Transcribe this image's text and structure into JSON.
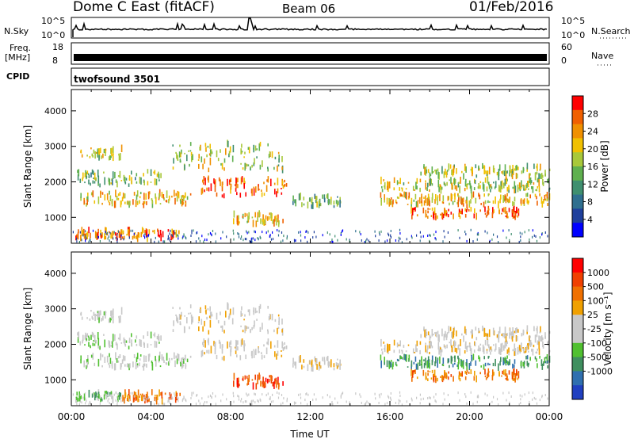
{
  "header": {
    "title": "Dome C East (fitACF)",
    "beam": "Beam 06",
    "date": "01/Feb/2016"
  },
  "nsky_panel": {
    "left_label": "N.Sky",
    "left_ticks": [
      "10^5",
      "10^0"
    ],
    "right_ticks": [
      "10^5",
      "10^0"
    ],
    "right_label": "N.Search"
  },
  "freq_panel": {
    "left_label_line1": "Freq.",
    "left_label_line2": "[MHz]",
    "left_ticks": [
      "18",
      "8"
    ],
    "right_ticks": [
      "60",
      "0"
    ],
    "right_label": "Nave"
  },
  "cpid_panel": {
    "left_label": "CPID",
    "program": "twofsound 3501"
  },
  "colors": {
    "power_scale": [
      "#0000ff",
      "#1e3f9c",
      "#2f6f8f",
      "#3f8f6f",
      "#5fb04f",
      "#a8c83a",
      "#f0c000",
      "#f09000",
      "#f06000",
      "#ff0000"
    ],
    "velocity_scale": [
      "#2040c0",
      "#2f6faf",
      "#3f8f5f",
      "#50c030",
      "#c8c8c8",
      "#c8c8c8",
      "#f0a000",
      "#f07000",
      "#f04000",
      "#ff0000"
    ]
  },
  "chart_data": [
    {
      "type": "heatmap",
      "name": "power",
      "ylabel": "Slant Range [km]",
      "yticks": [
        "1000",
        "2000",
        "3000",
        "4000"
      ],
      "ylim": [
        270,
        4600
      ],
      "xlim_hours": [
        0,
        24
      ],
      "colorbar": {
        "label": "Power [dB]",
        "ticks": [
          "4",
          "8",
          "12",
          "16",
          "20",
          "24",
          "28"
        ],
        "range": [
          0,
          32
        ]
      },
      "echo_bands": [
        {
          "t0": 0.3,
          "t1": 2.5,
          "r0": 2650,
          "r1": 2950,
          "v": 16
        },
        {
          "t0": 0.2,
          "t1": 4.5,
          "r0": 1900,
          "r1": 2300,
          "v": 14
        },
        {
          "t0": 0.3,
          "t1": 6.0,
          "r0": 1350,
          "r1": 1700,
          "v": 20
        },
        {
          "t0": 0.2,
          "t1": 5.5,
          "r0": 400,
          "r1": 650,
          "v": 24
        },
        {
          "t0": 5.0,
          "t1": 10.8,
          "r0": 2300,
          "r1": 3100,
          "v": 16
        },
        {
          "t0": 6.5,
          "t1": 10.8,
          "r0": 1600,
          "r1": 2100,
          "v": 26
        },
        {
          "t0": 8.0,
          "t1": 10.8,
          "r0": 800,
          "r1": 1100,
          "v": 20
        },
        {
          "t0": 11.0,
          "t1": 13.5,
          "r0": 1300,
          "r1": 1600,
          "v": 12
        },
        {
          "t0": 15.5,
          "t1": 24,
          "r0": 1750,
          "r1": 2050,
          "v": 16
        },
        {
          "t0": 17.5,
          "t1": 24,
          "r0": 2150,
          "r1": 2450,
          "v": 16
        },
        {
          "t0": 15.5,
          "t1": 24,
          "r0": 1350,
          "r1": 1650,
          "v": 20
        },
        {
          "t0": 17.0,
          "t1": 22.5,
          "r0": 1000,
          "r1": 1250,
          "v": 26
        }
      ]
    },
    {
      "type": "heatmap",
      "name": "velocity",
      "ylabel": "Slant Range [km]",
      "yticks": [
        "1000",
        "2000",
        "3000",
        "4000"
      ],
      "ylim": [
        270,
        4600
      ],
      "xlim_hours": [
        0,
        24
      ],
      "xticks": [
        "00:00",
        "04:00",
        "08:00",
        "12:00",
        "16:00",
        "20:00",
        "00:00"
      ],
      "xlabel": "Time UT",
      "colorbar": {
        "label": "Velocity [m s⁻¹]",
        "ticks": [
          "1000",
          "500",
          "100",
          "25",
          "-25",
          "-100",
          "-500",
          "-1000"
        ]
      },
      "echo_bands": [
        {
          "t0": 0.3,
          "t1": 2.5,
          "r0": 2650,
          "r1": 2950,
          "v": 4
        },
        {
          "t0": 0.2,
          "t1": 4.5,
          "r0": 1900,
          "r1": 2300,
          "v": 4
        },
        {
          "t0": 0.3,
          "t1": 6.0,
          "r0": 1350,
          "r1": 1700,
          "v": 4
        },
        {
          "t0": 0.2,
          "t1": 2.5,
          "r0": 400,
          "r1": 650,
          "v": 3
        },
        {
          "t0": 2.5,
          "t1": 5.5,
          "r0": 400,
          "r1": 650,
          "v": 7
        },
        {
          "t0": 5.0,
          "t1": 10.8,
          "r0": 2300,
          "r1": 3100,
          "v": 5
        },
        {
          "t0": 6.5,
          "t1": 10.8,
          "r0": 1600,
          "r1": 2100,
          "v": 5
        },
        {
          "t0": 8.0,
          "t1": 10.8,
          "r0": 800,
          "r1": 1100,
          "v": 8
        },
        {
          "t0": 11.0,
          "t1": 13.5,
          "r0": 1300,
          "r1": 1600,
          "v": 5
        },
        {
          "t0": 15.5,
          "t1": 24,
          "r0": 1750,
          "r1": 2050,
          "v": 5
        },
        {
          "t0": 17.5,
          "t1": 24,
          "r0": 2150,
          "r1": 2450,
          "v": 5
        },
        {
          "t0": 15.5,
          "t1": 24,
          "r0": 1350,
          "r1": 1650,
          "v": 2
        },
        {
          "t0": 17.0,
          "t1": 22.5,
          "r0": 1000,
          "r1": 1250,
          "v": 7
        }
      ]
    }
  ]
}
